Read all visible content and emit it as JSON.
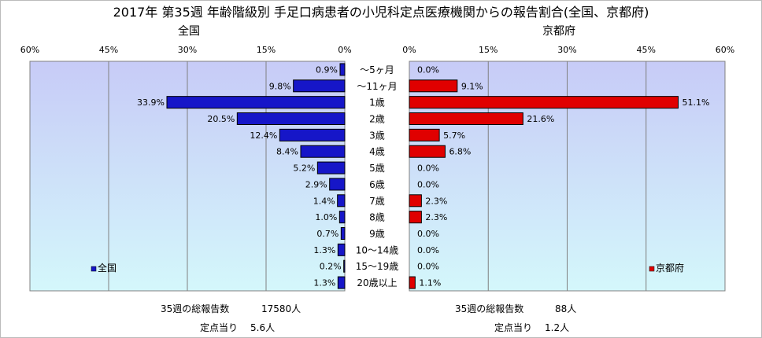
{
  "title": "2017年 第35週 年齢階級別 手足口病患者の小児科定点医療機関からの報告割合(全国、京都府)",
  "colors": {
    "national": "#1616c8",
    "kyoto": "#e00000",
    "plot_top": "#c7cbf7",
    "plot_bottom": "#d4f7fb"
  },
  "chart_data": {
    "type": "bar",
    "categories": [
      "～5ヶ月",
      "～11ヶ月",
      "1歳",
      "2歳",
      "3歳",
      "4歳",
      "5歳",
      "6歳",
      "7歳",
      "8歳",
      "9歳",
      "10～14歳",
      "15～19歳",
      "20歳以上"
    ],
    "xlim": [
      0,
      60
    ],
    "ticks": [
      "0%",
      "15%",
      "30%",
      "45%",
      "60%"
    ],
    "series": [
      {
        "name": "全国",
        "panel_title": "全国",
        "legend": "全国",
        "values": [
          0.9,
          9.8,
          33.9,
          20.5,
          12.4,
          8.4,
          5.2,
          2.9,
          1.4,
          1.0,
          0.7,
          1.3,
          0.2,
          1.3
        ],
        "labels": [
          "0.9%",
          "9.8%",
          "33.9%",
          "20.5%",
          "12.4%",
          "8.4%",
          "5.2%",
          "2.9%",
          "1.4%",
          "1.0%",
          "0.7%",
          "1.3%",
          "0.2%",
          "1.3%"
        ]
      },
      {
        "name": "京都府",
        "panel_title": "京都府",
        "legend": "京都府",
        "values": [
          0.0,
          9.1,
          51.1,
          21.6,
          5.7,
          6.8,
          0.0,
          0.0,
          2.3,
          2.3,
          0.0,
          0.0,
          0.0,
          1.1
        ],
        "labels": [
          "0.0%",
          "9.1%",
          "51.1%",
          "21.6%",
          "5.7%",
          "6.8%",
          "0.0%",
          "0.0%",
          "2.3%",
          "2.3%",
          "0.0%",
          "0.0%",
          "0.0%",
          "1.1%"
        ]
      }
    ]
  },
  "footer": {
    "national": {
      "total_label": "35週の総報告数",
      "total_value": "17580人",
      "per_label": "定点当り",
      "per_value": "5.6人"
    },
    "kyoto": {
      "total_label": "35週の総報告数",
      "total_value": "88人",
      "per_label": "定点当り",
      "per_value": "1.2人"
    }
  }
}
